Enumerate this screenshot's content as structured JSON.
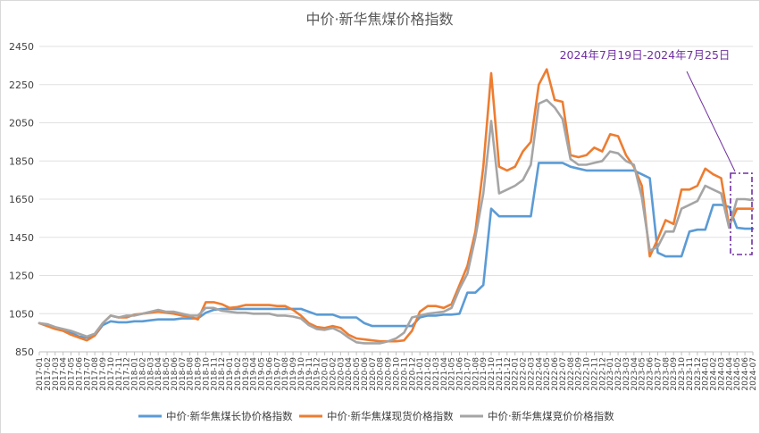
{
  "chart_data": {
    "type": "line",
    "title": "中价·新华焦煤价格指数",
    "ylim": [
      850,
      2450
    ],
    "yticks": [
      850,
      1050,
      1250,
      1450,
      1650,
      1850,
      2050,
      2250,
      2450
    ],
    "grid": true,
    "legend_position": "bottom",
    "x": [
      "2017-01",
      "2017-02",
      "2017-03",
      "2017-04",
      "2017-05",
      "2017-06",
      "2017-07",
      "2017-08",
      "2017-09",
      "2017-10",
      "2017-11",
      "2017-12",
      "2018-01",
      "2018-02",
      "2018-03",
      "2018-04",
      "2018-05",
      "2018-06",
      "2018-07",
      "2018-08",
      "2018-09",
      "2018-10",
      "2018-11",
      "2018-12",
      "2019-01",
      "2019-02",
      "2019-03",
      "2019-04",
      "2019-05",
      "2019-06",
      "2019-07",
      "2019-08",
      "2019-09",
      "2019-10",
      "2019-11",
      "2019-12",
      "2020-01",
      "2020-02",
      "2020-03",
      "2020-04",
      "2020-05",
      "2020-06",
      "2020-07",
      "2020-08",
      "2020-09",
      "2020-10",
      "2020-11",
      "2020-12",
      "2021-01",
      "2021-02",
      "2021-03",
      "2021-04",
      "2021-05",
      "2021-06",
      "2021-07",
      "2021-08",
      "2021-09",
      "2021-10",
      "2021-11",
      "2021-12",
      "2022-01",
      "2022-02",
      "2022-03",
      "2022-04",
      "2022-05",
      "2022-06",
      "2022-07",
      "2022-08",
      "2022-09",
      "2022-10",
      "2022-11",
      "2022-12",
      "2023-01",
      "2023-02",
      "2023-03",
      "2023-04",
      "2023-05",
      "2023-06",
      "2023-07",
      "2023-08",
      "2023-09",
      "2023-10",
      "2023-11",
      "2023-12",
      "2024-01",
      "2024-02",
      "2024-03",
      "2024-04",
      "2024-05",
      "2024-06",
      "2024-07"
    ],
    "xticks": [
      "2017-01",
      "2017-02",
      "2017-03",
      "2017-04",
      "2017-05",
      "2017-06",
      "2017-07",
      "2017-08",
      "2017-09",
      "2017-10",
      "2017-11",
      "2017-12",
      "2018-01",
      "2018-02",
      "2018-03",
      "2018-04",
      "2018-05",
      "2018-06",
      "2018-07",
      "2018-08",
      "2018-09",
      "2018-10",
      "2018-11",
      "2018-12",
      "2019-01",
      "2019-02",
      "2019-03",
      "2019-04",
      "2019-05",
      "2019-06",
      "2019-07",
      "2019-08",
      "2019-09",
      "2019-10",
      "2019-11",
      "2019-12",
      "2020-01",
      "2020-02",
      "2020-03",
      "2020-04",
      "2020-05",
      "2020-06",
      "2020-07",
      "2020-08",
      "2020-09",
      "2020-10",
      "2020-11",
      "2020-12",
      "2021-01",
      "2021-02",
      "2021-03",
      "2021-04",
      "2021-05",
      "2021-06",
      "2021-07",
      "2021-08",
      "2021-09",
      "2021-10",
      "2021-11",
      "2021-12",
      "2022-01",
      "2022-02",
      "2022-03",
      "2022-04",
      "2022-05",
      "2022-06",
      "2022-07",
      "2022-08",
      "2022-09",
      "2022-10",
      "2022-11",
      "2022-12",
      "2023-01",
      "2023-02",
      "2023-03",
      "2023-04",
      "2023-05",
      "2023-06",
      "2023-07",
      "2023-08",
      "2023-09",
      "2023-10",
      "2023-11",
      "2023-12",
      "2024-01",
      "2024-02",
      "2024-03",
      "2024-04",
      "2024-05",
      "2024-06",
      "2024-07"
    ],
    "series": [
      {
        "name": "中价·新华焦煤长协价格指数",
        "color": "#5b9bd5",
        "values": [
          1000,
          990,
          975,
          965,
          950,
          930,
          925,
          935,
          990,
          1010,
          1005,
          1005,
          1010,
          1010,
          1015,
          1020,
          1020,
          1020,
          1025,
          1025,
          1025,
          1055,
          1070,
          1075,
          1075,
          1075,
          1075,
          1075,
          1075,
          1075,
          1075,
          1075,
          1075,
          1075,
          1060,
          1045,
          1045,
          1045,
          1030,
          1030,
          1030,
          1000,
          985,
          985,
          985,
          985,
          985,
          985,
          1030,
          1040,
          1040,
          1045,
          1045,
          1050,
          1160,
          1160,
          1200,
          1600,
          1560,
          1560,
          1560,
          1560,
          1560,
          1840,
          1840,
          1840,
          1840,
          1820,
          1810,
          1800,
          1800,
          1800,
          1800,
          1800,
          1800,
          1800,
          1780,
          1760,
          1370,
          1350,
          1350,
          1350,
          1480,
          1490,
          1490,
          1620,
          1620,
          1610,
          1500,
          1495,
          1495
        ]
      },
      {
        "name": "中价·新华焦煤现货价格指数",
        "color": "#ed7d31",
        "values": [
          1000,
          985,
          970,
          960,
          940,
          925,
          910,
          935,
          1000,
          1040,
          1030,
          1030,
          1045,
          1050,
          1055,
          1060,
          1055,
          1050,
          1040,
          1035,
          1020,
          1110,
          1110,
          1100,
          1080,
          1085,
          1095,
          1095,
          1095,
          1095,
          1090,
          1090,
          1070,
          1040,
          1000,
          980,
          975,
          985,
          975,
          940,
          920,
          915,
          910,
          905,
          905,
          905,
          910,
          960,
          1060,
          1090,
          1090,
          1080,
          1100,
          1200,
          1300,
          1480,
          1820,
          2310,
          1820,
          1800,
          1820,
          1900,
          1950,
          2250,
          2330,
          2170,
          2160,
          1880,
          1870,
          1880,
          1920,
          1900,
          1990,
          1980,
          1880,
          1820,
          1720,
          1350,
          1440,
          1540,
          1520,
          1700,
          1700,
          1720,
          1810,
          1780,
          1760,
          1510,
          1600,
          1600,
          1600
        ]
      },
      {
        "name": "中价·新华焦煤竞价价格指数",
        "color": "#a5a5a5",
        "values": [
          1000,
          995,
          980,
          970,
          960,
          945,
          930,
          945,
          1000,
          1040,
          1030,
          1040,
          1040,
          1050,
          1060,
          1070,
          1060,
          1060,
          1050,
          1040,
          1040,
          1080,
          1080,
          1065,
          1060,
          1055,
          1055,
          1050,
          1050,
          1050,
          1040,
          1040,
          1035,
          1025,
          990,
          970,
          965,
          975,
          955,
          925,
          900,
          895,
          895,
          895,
          905,
          920,
          950,
          1030,
          1040,
          1050,
          1055,
          1060,
          1080,
          1180,
          1260,
          1450,
          1680,
          2060,
          1680,
          1700,
          1720,
          1750,
          1830,
          2150,
          2170,
          2130,
          2070,
          1860,
          1830,
          1830,
          1840,
          1850,
          1900,
          1890,
          1850,
          1830,
          1660,
          1380,
          1400,
          1480,
          1480,
          1600,
          1620,
          1640,
          1720,
          1700,
          1680,
          1500,
          1650,
          1650,
          1645
        ]
      }
    ],
    "annotation": {
      "text": "2024年7月19日-2024年7月25日"
    }
  }
}
